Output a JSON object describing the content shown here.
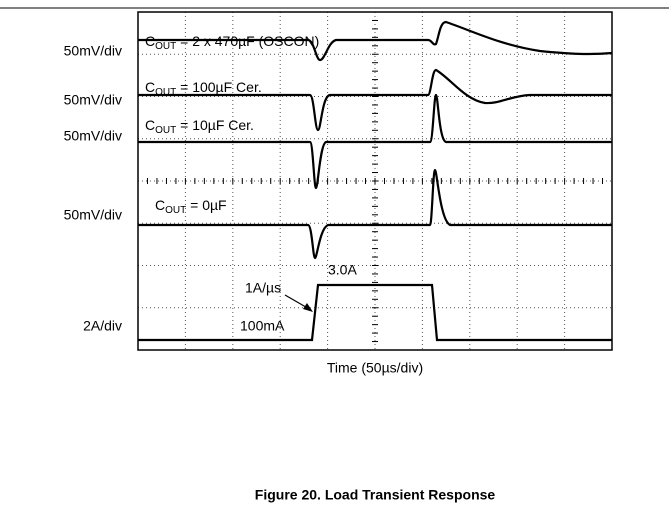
{
  "figure": {
    "scale_labels": [
      "50mV/div",
      "50mV/div",
      "50mV/div",
      "50mV/div",
      "2A/div"
    ],
    "traces": [
      {
        "prefix": "C",
        "sub": "OUT",
        "rest": " = 2 x 470µF (OSCON)"
      },
      {
        "prefix": "C",
        "sub": "OUT",
        "rest": " = 100µF Cer."
      },
      {
        "prefix": "C",
        "sub": "OUT",
        "rest": " = 10µF Cer."
      },
      {
        "prefix": "C",
        "sub": "OUT",
        "rest": " = 0µF"
      }
    ],
    "annotations": {
      "high": "3.0A",
      "slew": "1A/µs",
      "low": "100mA"
    },
    "x_label": "Time (50µs/div)",
    "caption": "Figure 20. Load Transient Response"
  }
}
